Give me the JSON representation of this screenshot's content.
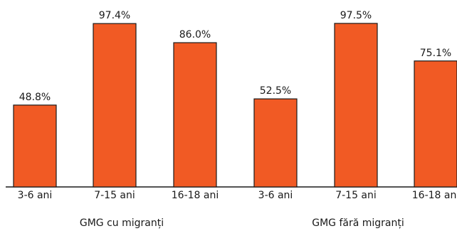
{
  "chart_data": {
    "type": "bar",
    "title": "",
    "xlabel": "",
    "ylabel": "",
    "ylim": [
      0,
      100
    ],
    "bar_color": "#F15A24",
    "bar_stroke": "#1a1a1a",
    "groups": [
      {
        "label": "GMG cu migranți",
        "categories": [
          "3-6 ani",
          "7-15 ani",
          "16-18 ani"
        ],
        "values": [
          48.8,
          97.4,
          86.0
        ],
        "value_labels": [
          "48.8%",
          "97.4%",
          "86.0%"
        ]
      },
      {
        "label": "GMG fără migranți",
        "categories": [
          "3-6 ani",
          "7-15 ani",
          "16-18 ani"
        ],
        "values": [
          52.5,
          97.5,
          75.1
        ],
        "value_labels": [
          "52.5%",
          "97.5%",
          "75.1%"
        ]
      }
    ]
  }
}
